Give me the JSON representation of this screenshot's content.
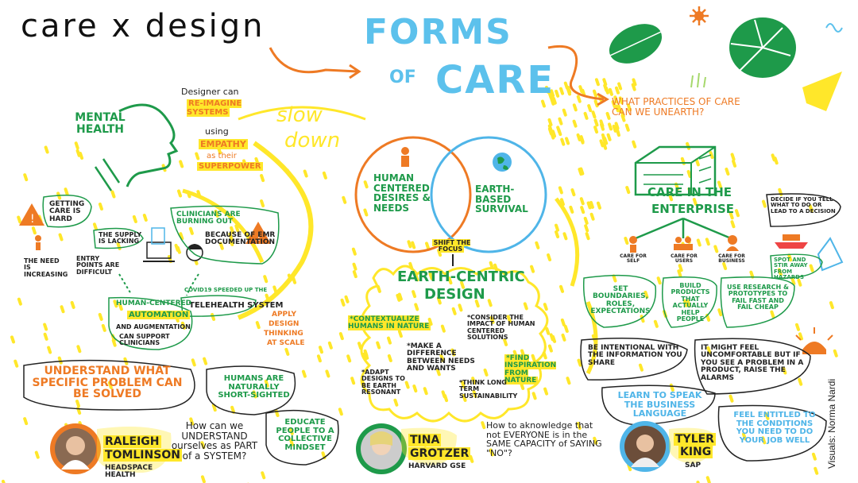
{
  "brand": "care x design",
  "title": {
    "line1": "FORMS",
    "line2": "OF",
    "line3": "CARE"
  },
  "slow_down": {
    "line1": "slow",
    "line2": "down"
  },
  "question_practices": "WHAT PRACTICES OF CARE CAN WE UNEARTH?",
  "mental_health": {
    "label": "MENTAL HEALTH",
    "designer_can": "Designer can",
    "reimagine": "RE-IMAGINE SYSTEMS",
    "using": "using",
    "empathy": "EMPATHY",
    "as_their": "as their",
    "superpower": "SUPERPOWER"
  },
  "care_hard": {
    "getting": "Getting CARE is HARD",
    "supply": "The supply is lacking",
    "entry": "Entry points are difficult",
    "need": "The NEED is increasing"
  },
  "clinicians": {
    "line1": "clinicians are BURNING OUT",
    "line2": "because of EMR DOCUMENTATION"
  },
  "covid": {
    "line1": "COVID19 SPEEDED UP the",
    "line2": "TELEHEALTH SYSTEM"
  },
  "automation": {
    "line1": "Human-CENTERED",
    "line2": "AUTOMATION",
    "line3": "and AUGMENTATION",
    "line4": "can support clinicians"
  },
  "apply_design": {
    "line1": "APPLY",
    "line2": "DESIGN",
    "line3": "THINKING",
    "line4": "at SCALE"
  },
  "understand": "UNDERSTAND WHAT SPECIFIC PROBLEM CAN BE SOLVED",
  "humans_short": "HUMANS ARE NATURALLY SHORT-SIGHTED",
  "educate": "EDUCATE PEOPLE TO A COLLECTIVE MINDSET",
  "speaker1": {
    "first": "RALEIGH",
    "last": "TOMLINSON",
    "org": "HEADSPACE HEALTH"
  },
  "q1": "How can we UNDERSTAND ourselves as PART of a SYSTEM?",
  "venn": {
    "left": "HUMAN CENTERED DESIRES & NEEDS",
    "right": "EARTH-BASED SURVIVAL",
    "shift": "SHIFT THE FOCUS"
  },
  "earth_centric": {
    "title1": "EARTH-CENTRIC",
    "title2": "DESIGN",
    "b1": "*CONTEXTUALIZE HUMANS in NATURE",
    "b2": "*CONSIDER THE IMPACT of HUMAN CENTERED SOLUTIONS",
    "b3": "*make a difference between NEEDS and WANTS",
    "b4": "*FIND INSPIRATION FROM NATURE",
    "b5": "*ADAPT DESIGNS TO BE EARTH RESONANT",
    "b6": "*THINK LONG TERM SUSTAINABILITY"
  },
  "speaker2": {
    "first": "TINA",
    "last": "GROTZER",
    "org": "HARVARD GSE"
  },
  "q2": "How to aknowledge that not EVERYONE is in the SAME CAPACITY of SAYING \"NO\"?",
  "enterprise": {
    "title1": "CARE IN THE",
    "title2": "ENTERPRISE",
    "self": "CARE FOR SELF",
    "users": "CARE FOR USERS",
    "business": "CARE FOR BUSINESS",
    "boundaries": "SET BOUNDARIES, ROLES, EXPECTATIONS",
    "products": "BUILD PRODUCTS THAT ACTUALLY HELP PEOPLE",
    "research": "USE RESEARCH & PROTOTYPES TO FAIL FAST and FAIL CHEAP",
    "decide": "Decide if you TELL what to do or LEAD to a DECISION",
    "spot": "SPOT AND STIR AWAY FROM HAZARDS"
  },
  "intentional": "BE INTENTIONAL with the INFORMATION YOU SHARE",
  "uncomfortable": "IT might FEEL UNCOMFORTABLE but IF YOU SEE A PROBLEM in a PRODUCT, RAISE THE ALARMS",
  "learn_business": "LEARN TO SPEAK THE BUSINESS LANGUAGE",
  "entitled": "FEEL ENTITLED TO THE CONDITIONS YOU NEED TO DO YOUR JOB WELL",
  "speaker3": {
    "first": "TYLER",
    "last": "KING",
    "org": "SAP"
  },
  "credit": "Visuals: Norma Nardi",
  "colors": {
    "green": "#1e9a4a",
    "orange": "#ee7a24",
    "blue": "#5cc1ec",
    "yellow": "#ffe72a"
  }
}
